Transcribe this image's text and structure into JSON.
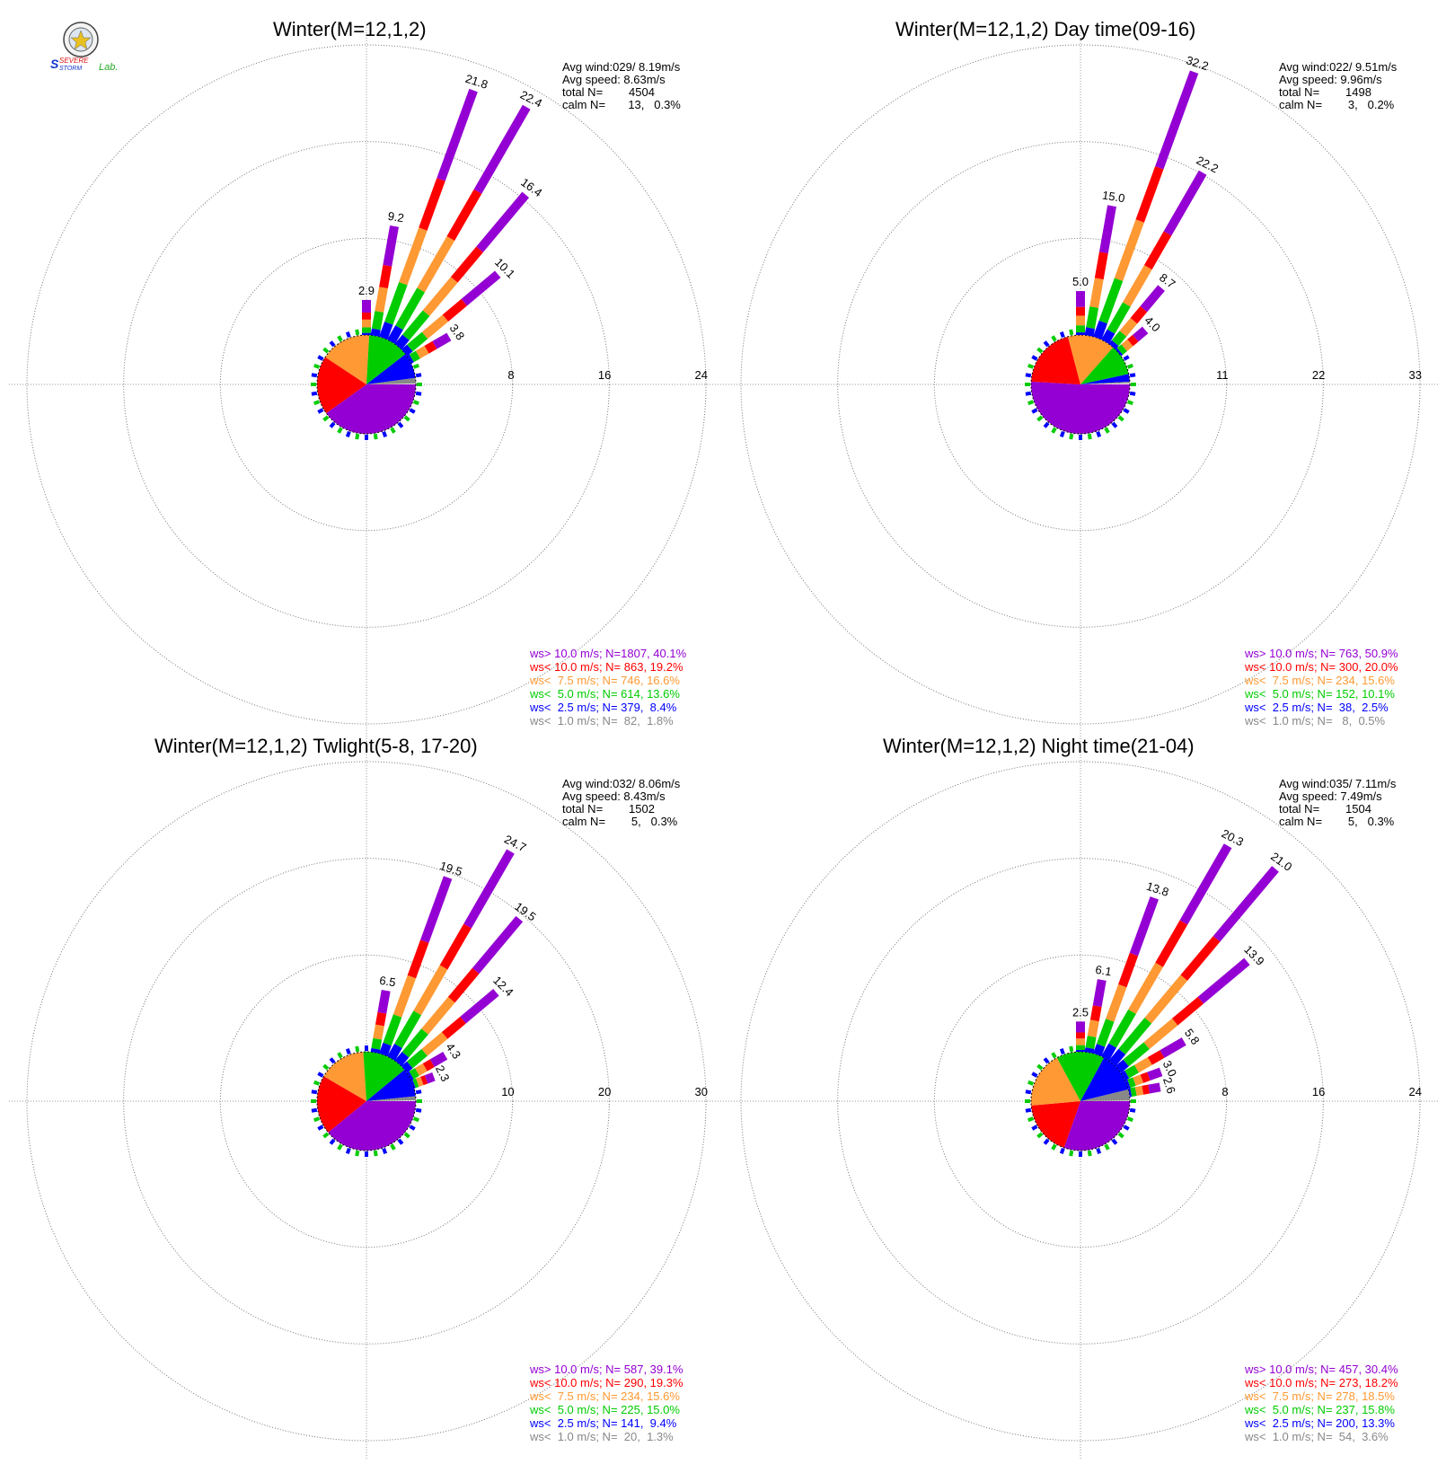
{
  "logo": {
    "text_top": "SEVERE",
    "text_bottom": "STORM",
    "text_lab": "Lab."
  },
  "colors": {
    "ws_gt_10": "#9400D3",
    "ws_lt_10": "#FF0000",
    "ws_lt_7_5": "#FF9933",
    "ws_lt_5": "#00CC00",
    "ws_lt_2_5": "#0000FF",
    "ws_lt_1": "#888888"
  },
  "chart_data": [
    {
      "type": "wind-rose",
      "title": "Winter(M=12,1,2)",
      "stats": {
        "avg_wind": "Avg wind:029/ 8.19m/s",
        "avg_speed": "Avg speed: 8.63m/s",
        "total": "total N=        4504",
        "calm": "calm N=       13,   0.3%"
      },
      "rings": [
        8,
        16,
        24
      ],
      "ring_labels": [
        "8",
        "16",
        "24"
      ],
      "bars": [
        {
          "dir": 0,
          "total": 2.9,
          "label": "2.9"
        },
        {
          "dir": 10,
          "total": 9.2,
          "label": "9.2"
        },
        {
          "dir": 20,
          "total": 21.8,
          "label": "21.8"
        },
        {
          "dir": 30,
          "total": 22.4,
          "label": "22.4"
        },
        {
          "dir": 40,
          "total": 16.4,
          "label": "16.4"
        },
        {
          "dir": 50,
          "total": 10.1,
          "label": "10.1"
        },
        {
          "dir": 60,
          "total": 3.8,
          "label": "3.8"
        }
      ],
      "legend": [
        {
          "label": "ws> 10.0 m/s; N=",
          "value": "1807, 40.1%",
          "pct": 40.1
        },
        {
          "label": "ws< 10.0 m/s; N=",
          "value": " 863, 19.2%",
          "pct": 19.2
        },
        {
          "label": "ws<  7.5 m/s; N=",
          "value": " 746, 16.6%",
          "pct": 16.6
        },
        {
          "label": "ws<  5.0 m/s; N=",
          "value": " 614, 13.6%",
          "pct": 13.6
        },
        {
          "label": "ws<  2.5 m/s; N=",
          "value": " 379,  8.4%",
          "pct": 8.4
        },
        {
          "label": "ws<  1.0 m/s; N=",
          "value": "  82,  1.8%",
          "pct": 1.8
        }
      ]
    },
    {
      "type": "wind-rose",
      "title": "Winter(M=12,1,2) Day time(09-16)",
      "stats": {
        "avg_wind": "Avg wind:022/ 9.51m/s",
        "avg_speed": "Avg speed: 9.96m/s",
        "total": "total N=        1498",
        "calm": "calm N=        3,   0.2%"
      },
      "rings": [
        11,
        22,
        33
      ],
      "ring_labels": [
        "11",
        "22",
        "33"
      ],
      "bars": [
        {
          "dir": 0,
          "total": 5.0,
          "label": "5.0"
        },
        {
          "dir": 10,
          "total": 15.0,
          "label": "15.0"
        },
        {
          "dir": 20,
          "total": 32.2,
          "label": "32.2"
        },
        {
          "dir": 30,
          "total": 22.2,
          "label": "22.2"
        },
        {
          "dir": 40,
          "total": 8.7,
          "label": "8.7"
        },
        {
          "dir": 50,
          "total": 4.0,
          "label": "4.0"
        }
      ],
      "legend": [
        {
          "label": "ws> 10.0 m/s; N=",
          "value": " 763, 50.9%",
          "pct": 50.9
        },
        {
          "label": "ws< 10.0 m/s; N=",
          "value": " 300, 20.0%",
          "pct": 20.0
        },
        {
          "label": "ws<  7.5 m/s; N=",
          "value": " 234, 15.6%",
          "pct": 15.6
        },
        {
          "label": "ws<  5.0 m/s; N=",
          "value": " 152, 10.1%",
          "pct": 10.1
        },
        {
          "label": "ws<  2.5 m/s; N=",
          "value": "  38,  2.5%",
          "pct": 2.5
        },
        {
          "label": "ws<  1.0 m/s; N=",
          "value": "   8,  0.5%",
          "pct": 0.5
        }
      ]
    },
    {
      "type": "wind-rose",
      "title": "Winter(M=12,1,2) Twlight(5-8, 17-20)",
      "stats": {
        "avg_wind": "Avg wind:032/ 8.06m/s",
        "avg_speed": "Avg speed: 8.43m/s",
        "total": "total N=        1502",
        "calm": "calm N=        5,   0.3%"
      },
      "rings": [
        10,
        20,
        30
      ],
      "ring_labels": [
        "10",
        "20",
        "30"
      ],
      "bars": [
        {
          "dir": 10,
          "total": 6.5,
          "label": "6.5"
        },
        {
          "dir": 20,
          "total": 19.5,
          "label": "19.5"
        },
        {
          "dir": 30,
          "total": 24.7,
          "label": "24.7"
        },
        {
          "dir": 40,
          "total": 19.5,
          "label": "19.5"
        },
        {
          "dir": 50,
          "total": 12.4,
          "label": "12.4"
        },
        {
          "dir": 60,
          "total": 4.3,
          "label": "4.3"
        },
        {
          "dir": 70,
          "total": 2.3,
          "label": "2.3"
        }
      ],
      "legend": [
        {
          "label": "ws> 10.0 m/s; N=",
          "value": " 587, 39.1%",
          "pct": 39.1
        },
        {
          "label": "ws< 10.0 m/s; N=",
          "value": " 290, 19.3%",
          "pct": 19.3
        },
        {
          "label": "ws<  7.5 m/s; N=",
          "value": " 234, 15.6%",
          "pct": 15.6
        },
        {
          "label": "ws<  5.0 m/s; N=",
          "value": " 225, 15.0%",
          "pct": 15.0
        },
        {
          "label": "ws<  2.5 m/s; N=",
          "value": " 141,  9.4%",
          "pct": 9.4
        },
        {
          "label": "ws<  1.0 m/s; N=",
          "value": "  20,  1.3%",
          "pct": 1.3
        }
      ]
    },
    {
      "type": "wind-rose",
      "title": "Winter(M=12,1,2) Night time(21-04)",
      "stats": {
        "avg_wind": "Avg wind:035/ 7.11m/s",
        "avg_speed": "Avg speed: 7.49m/s",
        "total": "total N=        1504",
        "calm": "calm N=        5,   0.3%"
      },
      "rings": [
        8,
        16,
        24
      ],
      "ring_labels": [
        "8",
        "16",
        "24"
      ],
      "bars": [
        {
          "dir": 0,
          "total": 2.5,
          "label": "2.5"
        },
        {
          "dir": 10,
          "total": 6.1,
          "label": "6.1"
        },
        {
          "dir": 20,
          "total": 13.8,
          "label": "13.8"
        },
        {
          "dir": 30,
          "total": 20.3,
          "label": "20.3"
        },
        {
          "dir": 40,
          "total": 21.0,
          "label": "21.0"
        },
        {
          "dir": 50,
          "total": 13.9,
          "label": "13.9"
        },
        {
          "dir": 60,
          "total": 5.8,
          "label": "5.8"
        },
        {
          "dir": 70,
          "total": 3.0,
          "label": "3.0"
        },
        {
          "dir": 80,
          "total": 2.6,
          "label": "2.6"
        }
      ],
      "legend": [
        {
          "label": "ws> 10.0 m/s; N=",
          "value": " 457, 30.4%",
          "pct": 30.4
        },
        {
          "label": "ws< 10.0 m/s; N=",
          "value": " 273, 18.2%",
          "pct": 18.2
        },
        {
          "label": "ws<  7.5 m/s; N=",
          "value": " 278, 18.5%",
          "pct": 18.5
        },
        {
          "label": "ws<  5.0 m/s; N=",
          "value": " 237, 15.8%",
          "pct": 15.8
        },
        {
          "label": "ws<  2.5 m/s; N=",
          "value": " 200, 13.3%",
          "pct": 13.3
        },
        {
          "label": "ws<  1.0 m/s; N=",
          "value": "  54,  3.6%",
          "pct": 3.6
        }
      ]
    }
  ]
}
